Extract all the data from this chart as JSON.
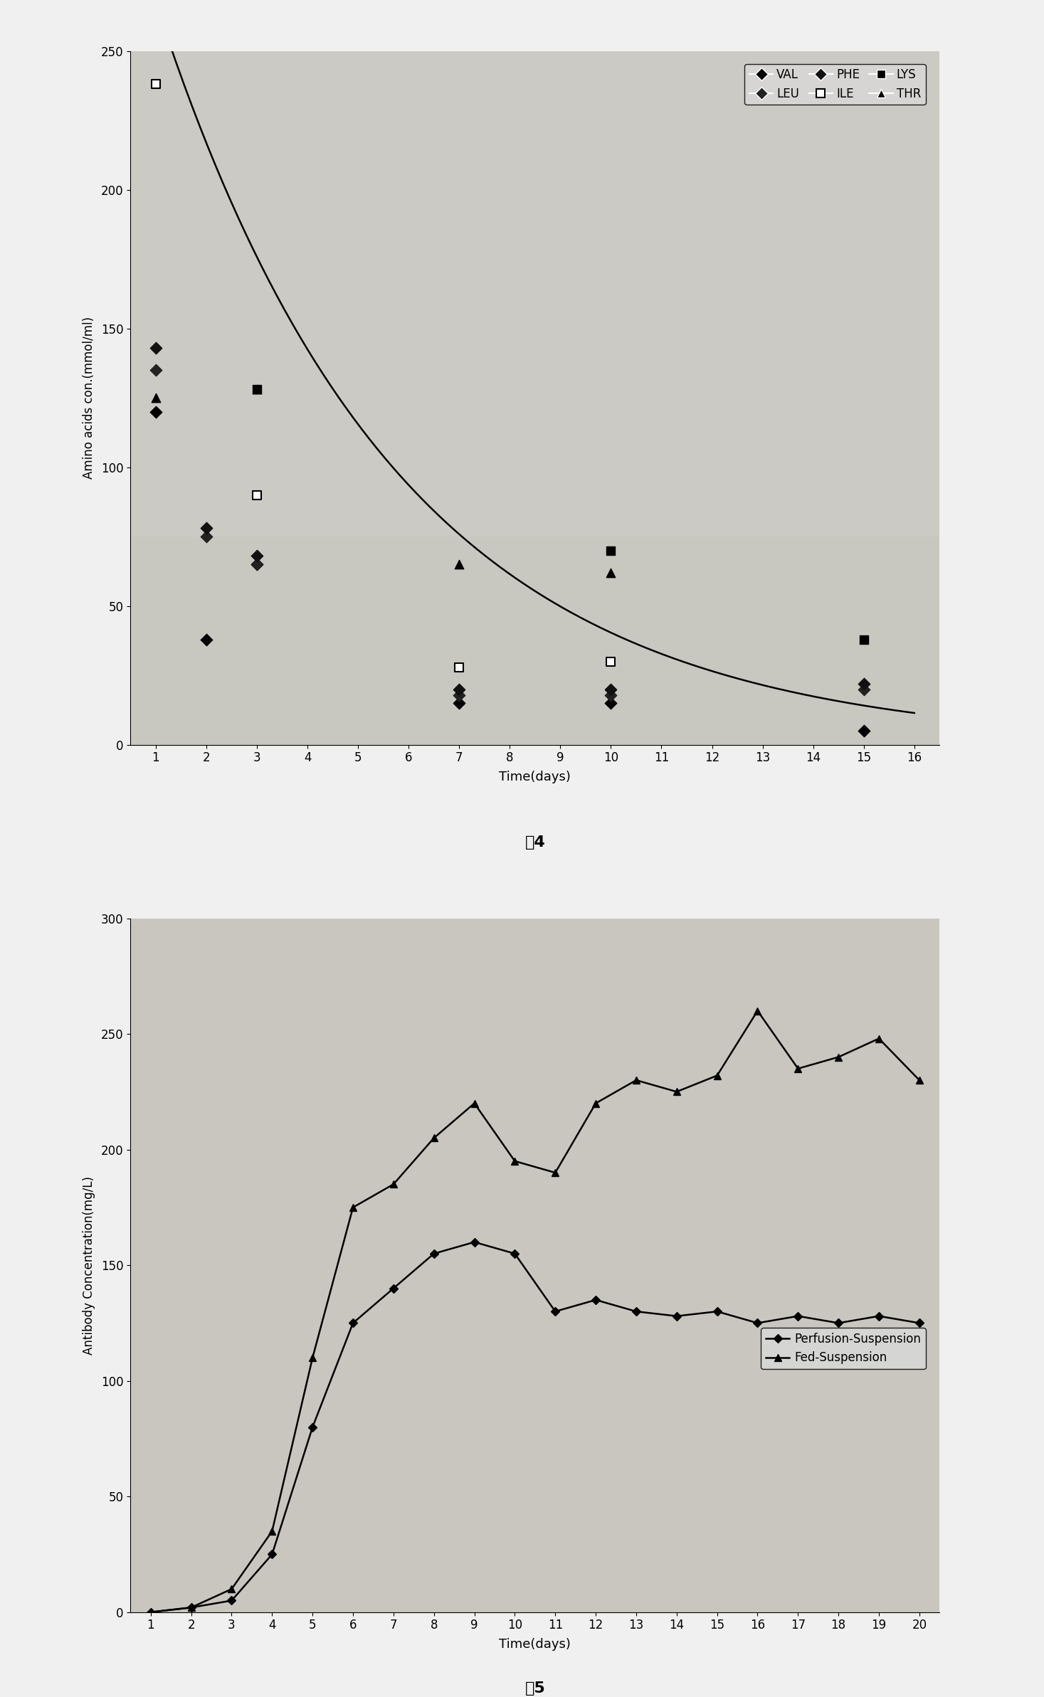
{
  "fig4": {
    "title": "图4",
    "xlabel": "Time(days)",
    "ylabel": "Amino acids con.(mmol/ml)",
    "ylim": [
      0,
      250
    ],
    "xlim": [
      0.5,
      16.5
    ],
    "xticks": [
      1,
      2,
      3,
      4,
      5,
      6,
      7,
      8,
      9,
      10,
      11,
      12,
      13,
      14,
      15,
      16
    ],
    "yticks": [
      0,
      50,
      100,
      150,
      200,
      250
    ],
    "VAL": {
      "x": [
        1,
        2,
        3,
        7,
        10,
        15
      ],
      "y": [
        120,
        38,
        65,
        15,
        15,
        5
      ]
    },
    "LEU": {
      "x": [
        1,
        2,
        3,
        7,
        10,
        15
      ],
      "y": [
        135,
        75,
        65,
        18,
        18,
        20
      ]
    },
    "PHE": {
      "x": [
        1,
        2,
        3,
        7,
        10,
        15
      ],
      "y": [
        143,
        78,
        68,
        20,
        20,
        22
      ]
    },
    "ILE": {
      "x": [
        1,
        3,
        7,
        10
      ],
      "y": [
        238,
        90,
        28,
        30
      ]
    },
    "LYS": {
      "x": [
        3,
        10,
        15
      ],
      "y": [
        128,
        70,
        38
      ]
    },
    "THR": {
      "x": [
        1,
        3,
        7,
        10
      ],
      "y": [
        125,
        128,
        65,
        62
      ]
    },
    "curve_A": 330,
    "curve_k": 0.21
  },
  "fig5": {
    "title": "图5",
    "xlabel": "Time(days)",
    "ylabel": "Antibody Concentration(mg/L)",
    "ylim": [
      0,
      300
    ],
    "xlim": [
      0.5,
      20.5
    ],
    "xticks": [
      1,
      2,
      3,
      4,
      5,
      6,
      7,
      8,
      9,
      10,
      11,
      12,
      13,
      14,
      15,
      16,
      17,
      18,
      19,
      20
    ],
    "yticks": [
      0,
      50,
      100,
      150,
      200,
      250,
      300
    ],
    "perfusion": {
      "x": [
        1,
        2,
        3,
        4,
        5,
        6,
        7,
        8,
        9,
        10,
        11,
        12,
        13,
        14,
        15,
        16,
        17,
        18,
        19,
        20
      ],
      "y": [
        0,
        2,
        5,
        25,
        80,
        125,
        140,
        155,
        160,
        155,
        130,
        135,
        130,
        128,
        130,
        125,
        128,
        125,
        128,
        125
      ]
    },
    "fed": {
      "x": [
        1,
        2,
        3,
        4,
        5,
        6,
        7,
        8,
        9,
        10,
        11,
        12,
        13,
        14,
        15,
        16,
        17,
        18,
        19,
        20
      ],
      "y": [
        0,
        2,
        10,
        35,
        110,
        175,
        185,
        205,
        220,
        195,
        190,
        220,
        230,
        225,
        232,
        260,
        235,
        240,
        248,
        230
      ]
    }
  },
  "fig_bg": "#c8c8c8",
  "plot_bg_top": "#c0c0c0",
  "plot_bg_bottom": "#c8c0b8",
  "white_bg": "#ffffff"
}
